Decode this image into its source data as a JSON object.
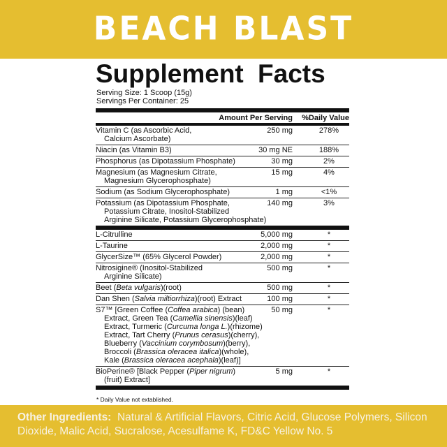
{
  "brand": "BEACH BLAST",
  "title": "Supplement Facts",
  "serving_size": "Serving Size: 1 Scoop (15g)",
  "servings_per_container": "Servings Per Container: 25",
  "header": {
    "amount": "Amount Per Serving",
    "dv": "%Daily Value"
  },
  "sections": [
    [
      {
        "lines": [
          [
            {
              "t": "Vitamin C (as Ascorbic Acid,"
            }
          ],
          [
            {
              "t": "Calcium Ascorbate)"
            }
          ]
        ],
        "amount": "250 mg",
        "dv": "278%"
      },
      {
        "lines": [
          [
            {
              "t": "Niacin (as Vitamin B3)"
            }
          ]
        ],
        "amount": "30 mg NE",
        "dv": "188%"
      },
      {
        "lines": [
          [
            {
              "t": "Phosphorus (as Dipotassium Phosphate)"
            }
          ]
        ],
        "amount": "30 mg",
        "dv": "2%"
      },
      {
        "lines": [
          [
            {
              "t": "Magnesium (as Magnesium Citrate,"
            }
          ],
          [
            {
              "t": "Magnesium Glycerophosphate)"
            }
          ]
        ],
        "amount": "15 mg",
        "dv": "4%"
      },
      {
        "lines": [
          [
            {
              "t": "Sodium (as Sodium Glycerophosphate)"
            }
          ]
        ],
        "amount": "1 mg",
        "dv": "<1%"
      },
      {
        "lines": [
          [
            {
              "t": "Potassium (as Dipotassium Phosphate,"
            }
          ],
          [
            {
              "t": "Potassium Citrate, Inositol-Stabilized"
            }
          ],
          [
            {
              "t": "Arginine Silicate, Potassium Glycerophosphate)"
            }
          ]
        ],
        "amount": "140 mg",
        "dv": "3%"
      }
    ],
    [
      {
        "lines": [
          [
            {
              "t": "L-Citrulline"
            }
          ]
        ],
        "amount": "5,000 mg",
        "dv": "*"
      },
      {
        "lines": [
          [
            {
              "t": "L-Taurine"
            }
          ]
        ],
        "amount": "2,000 mg",
        "dv": "*"
      },
      {
        "lines": [
          [
            {
              "t": "GlycerSize™ (65% Glycerol Powder)"
            }
          ]
        ],
        "amount": "2,000 mg",
        "dv": "*"
      },
      {
        "lines": [
          [
            {
              "t": "Nitrosigine® (Inositol-Stabilized"
            }
          ],
          [
            {
              "t": "Arginine Silicate)"
            }
          ]
        ],
        "amount": "500 mg",
        "dv": "*"
      },
      {
        "lines": [
          [
            {
              "t": "Beet ("
            },
            {
              "t": "Beta vulgaris",
              "i": true
            },
            {
              "t": ")(root)"
            }
          ]
        ],
        "amount": "500 mg",
        "dv": "*"
      },
      {
        "lines": [
          [
            {
              "t": "Dan Shen ("
            },
            {
              "t": "Salvia miltiorrhiza",
              "i": true
            },
            {
              "t": ")(root) Extract"
            }
          ]
        ],
        "amount": "100 mg",
        "dv": "*"
      },
      {
        "lines": [
          [
            {
              "t": "S7™ [Green Coffee ("
            },
            {
              "t": "Coffea arabica",
              "i": true
            },
            {
              "t": ") (bean)"
            }
          ],
          [
            {
              "t": "Extract, Green Tea ("
            },
            {
              "t": "Camellia sinensis",
              "i": true
            },
            {
              "t": ")(leaf)"
            }
          ],
          [
            {
              "t": "Extract, Turmeric ("
            },
            {
              "t": "Curcuma longa L.",
              "i": true
            },
            {
              "t": ")(rhizome)"
            }
          ],
          [
            {
              "t": "Extract, Tart Cherry ("
            },
            {
              "t": "Prunus cerasus",
              "i": true
            },
            {
              "t": ")(cherry),"
            }
          ],
          [
            {
              "t": "Blueberry ("
            },
            {
              "t": "Vaccinium corymbosum",
              "i": true
            },
            {
              "t": ")(berry),"
            }
          ],
          [
            {
              "t": "Broccoli ("
            },
            {
              "t": "Brassica oleracea italica",
              "i": true
            },
            {
              "t": ")(whole),"
            }
          ],
          [
            {
              "t": "Kale ("
            },
            {
              "t": "Brassica oleracea acephala",
              "i": true
            },
            {
              "t": ")(leaf)]"
            }
          ]
        ],
        "amount": "50 mg",
        "dv": "*"
      },
      {
        "lines": [
          [
            {
              "t": "BioPerine® [Black Pepper ("
            },
            {
              "t": "Piper nigrum",
              "i": true
            },
            {
              "t": ")"
            }
          ],
          [
            {
              "t": "(fruit) Extract]"
            }
          ]
        ],
        "amount": "5 mg",
        "dv": "*"
      }
    ]
  ],
  "footnote": "* Daily Value not extablished.",
  "other_ingredients": {
    "label": "Other Ingredients:",
    "text": "Natural & Artificial Flavors, Citric Acid, Glucose Polymers, Silicon Dioxide, Malic Acid, Sucralose, Acesulfame K, FD&C Yellow No. 5"
  },
  "colors": {
    "brand_yellow": "#e5be30",
    "text": "#111111"
  }
}
